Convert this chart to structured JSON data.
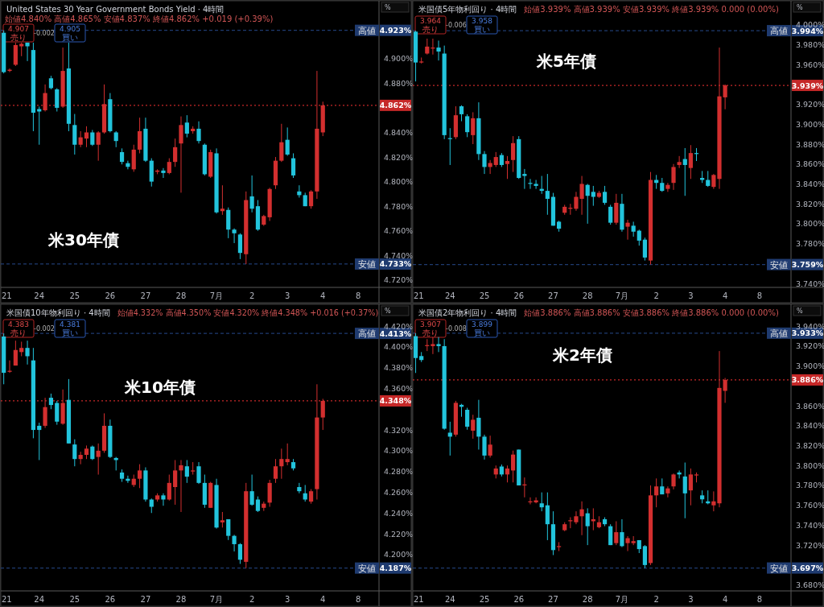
{
  "chart_data": [
    {
      "type": "candlestick",
      "title": "United States 30 Year Government Bonds Yield · 4時間",
      "subtitle": "始値4.840% 高値4.865% 安値4.837% 終値4.862% +0.019 (+0.39%)",
      "ylabel": "%",
      "annotations": [
        "米30年債",
        "4.907",
        "売り",
        "-0.002",
        "4.905",
        "買い"
      ],
      "categories": [
        "21",
        null,
        null,
        null,
        null,
        null,
        "24",
        null,
        null,
        null,
        null,
        null,
        "25",
        null,
        null,
        null,
        null,
        null,
        "26",
        null,
        null,
        null,
        null,
        null,
        "27",
        null,
        null,
        null,
        null,
        null,
        "28",
        null,
        null,
        null,
        null,
        null,
        "7月",
        null,
        null,
        null,
        null,
        null,
        "2",
        null,
        null,
        null,
        null,
        null,
        "3",
        null,
        null,
        null,
        null,
        null,
        "4",
        null,
        null,
        null,
        null,
        null,
        "8",
        null,
        null,
        null
      ],
      "ohlc": [
        [
          4.921,
          4.923,
          4.888,
          4.889
        ],
        [
          4.89,
          4.892,
          4.889,
          4.891
        ],
        [
          4.895,
          4.913,
          4.894,
          4.911
        ],
        [
          4.91,
          4.913,
          4.902,
          4.912
        ],
        [
          4.913,
          4.913,
          4.898,
          4.91
        ],
        [
          4.907,
          4.913,
          4.841,
          4.856
        ],
        [
          4.859,
          4.861,
          4.83,
          4.857
        ],
        [
          4.858,
          4.879,
          4.857,
          4.872
        ],
        [
          4.884,
          4.886,
          4.875,
          4.876
        ],
        [
          4.875,
          4.876,
          4.857,
          4.86
        ],
        [
          4.861,
          4.909,
          4.86,
          4.89
        ],
        [
          4.892,
          4.913,
          4.841,
          4.847
        ],
        [
          4.846,
          4.855,
          4.822,
          4.83
        ],
        [
          4.83,
          4.841,
          4.828,
          4.836
        ],
        [
          4.835,
          4.845,
          4.828,
          4.84
        ],
        [
          4.84,
          4.842,
          4.829,
          4.83
        ],
        [
          4.83,
          4.841,
          4.817,
          4.84
        ],
        [
          4.84,
          4.879,
          4.839,
          4.863
        ],
        [
          4.867,
          4.872,
          4.84,
          4.841
        ],
        [
          4.84,
          4.841,
          4.828,
          4.833
        ],
        [
          4.824,
          4.827,
          4.814,
          4.816
        ],
        [
          4.815,
          4.817,
          4.81,
          4.812
        ],
        [
          4.81,
          4.83,
          4.808,
          4.826
        ],
        [
          4.826,
          4.852,
          4.823,
          4.841
        ],
        [
          4.843,
          4.852,
          4.816,
          4.817
        ],
        [
          4.817,
          4.819,
          4.796,
          4.8
        ],
        [
          4.808,
          4.81,
          4.806,
          4.809
        ],
        [
          4.809,
          4.811,
          4.803,
          4.807
        ],
        [
          4.807,
          4.819,
          4.806,
          4.816
        ],
        [
          4.816,
          4.835,
          4.812,
          4.828
        ],
        [
          4.831,
          4.853,
          4.791,
          4.846
        ],
        [
          4.848,
          4.854,
          4.836,
          4.839
        ],
        [
          4.841,
          4.845,
          4.839,
          4.843
        ],
        [
          4.843,
          4.849,
          4.831,
          4.833
        ],
        [
          4.83,
          4.831,
          4.805,
          4.806
        ],
        [
          4.804,
          4.826,
          4.803,
          4.824
        ],
        [
          4.823,
          4.827,
          4.774,
          4.775
        ],
        [
          4.776,
          4.797,
          4.773,
          4.778
        ],
        [
          4.777,
          4.779,
          4.754,
          4.761
        ],
        [
          4.761,
          4.762,
          4.75,
          4.758
        ],
        [
          4.757,
          4.758,
          4.737,
          4.742
        ],
        [
          4.741,
          4.792,
          4.733,
          4.785
        ],
        [
          4.788,
          4.805,
          4.775,
          4.778
        ],
        [
          4.78,
          4.785,
          4.76,
          4.761
        ],
        [
          4.765,
          4.773,
          4.764,
          4.772
        ],
        [
          4.771,
          4.795,
          4.768,
          4.794
        ],
        [
          4.797,
          4.82,
          4.794,
          4.817
        ],
        [
          4.817,
          4.847,
          4.816,
          4.832
        ],
        [
          4.834,
          4.844,
          4.821,
          4.822
        ],
        [
          4.819,
          4.823,
          4.803,
          4.805
        ],
        [
          4.792,
          4.797,
          4.787,
          4.789
        ],
        [
          4.789,
          4.791,
          4.78,
          4.78
        ],
        [
          4.78,
          4.793,
          4.778,
          4.792
        ],
        [
          4.792,
          4.89,
          4.786,
          4.843
        ],
        [
          4.84,
          4.865,
          4.837,
          4.862
        ],
        null,
        null,
        null,
        null,
        null,
        null,
        null,
        null,
        null
      ],
      "colors": [
        "#22c4dc",
        "#d32f2f",
        "#d32f2f",
        "#d32f2f",
        "#22c4dc",
        "#22c4dc",
        "#22c4dc",
        "#d32f2f",
        "#22c4dc",
        "#22c4dc",
        "#d32f2f",
        "#22c4dc",
        "#22c4dc",
        "#d32f2f",
        "#d32f2f",
        "#22c4dc",
        "#d32f2f",
        "#d32f2f",
        "#22c4dc",
        "#22c4dc",
        "#22c4dc",
        "#22c4dc",
        "#d32f2f",
        "#d32f2f",
        "#22c4dc",
        "#22c4dc",
        "#d32f2f",
        "#22c4dc",
        "#d32f2f",
        "#d32f2f",
        "#d32f2f",
        "#22c4dc",
        "#d32f2f",
        "#22c4dc",
        "#22c4dc",
        "#d32f2f",
        "#22c4dc",
        "#d32f2f",
        "#22c4dc",
        "#22c4dc",
        "#22c4dc",
        "#d32f2f",
        "#22c4dc",
        "#22c4dc",
        "#d32f2f",
        "#d32f2f",
        "#d32f2f",
        "#d32f2f",
        "#22c4dc",
        "#22c4dc",
        "#22c4dc",
        "#22c4dc",
        "#d32f2f",
        "#d32f2f",
        "#d32f2f",
        null,
        null,
        null,
        null,
        null,
        null,
        null,
        null,
        null
      ],
      "ylim": [
        4.714,
        4.947
      ],
      "yticks": [
        {
          "value": 4.72,
          "label": "4.720%"
        },
        {
          "value": 4.74,
          "label": "4.740%"
        },
        {
          "value": 4.76,
          "label": "4.760%"
        },
        {
          "value": 4.78,
          "label": "4.780%"
        },
        {
          "value": 4.8,
          "label": "4.800%"
        },
        {
          "value": 4.82,
          "label": "4.820%"
        },
        {
          "value": 4.84,
          "label": "4.840%"
        },
        {
          "value": 4.88,
          "label": "4.880%"
        },
        {
          "value": 4.9,
          "label": "4.900%"
        }
      ],
      "ref_lines": [
        {
          "axis": "y",
          "value": 4.923,
          "label": "高値 4.923%",
          "color": "#1f3b70",
          "line_style": "dashed"
        },
        {
          "axis": "y",
          "value": 4.862,
          "label": "4.862%",
          "color": "#c62828",
          "line_style": "dotted"
        },
        {
          "axis": "y",
          "value": 4.733,
          "label": "安値 4.733%",
          "color": "#1f3b70",
          "line_style": "dashed"
        }
      ]
    },
    {
      "type": "candlestick",
      "title": "米国債5年物利回り · 4時間",
      "subtitle": "始値3.939% 高値3.939% 安値3.939% 終値3.939% 0.000 (0.00%)",
      "ylabel": "%",
      "annotations": [
        "米5年債",
        "3.964",
        "売り",
        "-0.006",
        "3.958",
        "買い"
      ],
      "categories": [
        "21",
        null,
        null,
        null,
        null,
        null,
        "24",
        null,
        null,
        null,
        null,
        null,
        "25",
        null,
        null,
        null,
        null,
        null,
        "26",
        null,
        null,
        null,
        null,
        null,
        "27",
        null,
        null,
        null,
        null,
        null,
        "28",
        null,
        null,
        null,
        null,
        null,
        "7月",
        null,
        null,
        null,
        null,
        null,
        "2",
        null,
        null,
        null,
        null,
        null,
        "3",
        null,
        null,
        null,
        null,
        null,
        "4",
        null,
        null,
        null,
        null,
        null,
        "8",
        null,
        null,
        null,
        null,
        null
      ],
      "ohlc": [
        [
          3.993,
          3.994,
          3.943,
          3.962
        ],
        [
          3.962,
          3.967,
          3.961,
          3.963
        ],
        [
          3.971,
          3.986,
          3.97,
          3.978
        ],
        [
          3.976,
          3.986,
          3.97,
          3.977
        ],
        [
          3.977,
          3.984,
          3.964,
          3.973
        ],
        [
          3.971,
          3.979,
          3.885,
          3.889
        ],
        [
          3.886,
          3.896,
          3.859,
          3.885
        ],
        [
          3.887,
          3.918,
          3.885,
          3.909
        ],
        [
          3.918,
          3.919,
          3.903,
          3.91
        ],
        [
          3.908,
          3.91,
          3.887,
          3.892
        ],
        [
          3.889,
          3.912,
          3.88,
          3.906
        ],
        [
          3.906,
          3.922,
          3.864,
          3.87
        ],
        [
          3.87,
          3.873,
          3.85,
          3.857
        ],
        [
          3.857,
          3.864,
          3.85,
          3.861
        ],
        [
          3.859,
          3.872,
          3.857,
          3.867
        ],
        [
          3.869,
          3.871,
          3.857,
          3.859
        ],
        [
          3.86,
          3.868,
          3.845,
          3.863
        ],
        [
          3.864,
          3.888,
          3.852,
          3.881
        ],
        [
          3.885,
          3.888,
          3.845,
          3.846
        ],
        [
          3.85,
          3.855,
          3.835,
          3.848
        ],
        [
          3.841,
          3.845,
          3.835,
          3.84
        ],
        [
          3.84,
          3.844,
          3.835,
          3.838
        ],
        [
          3.835,
          3.848,
          3.83,
          3.833
        ],
        [
          3.833,
          3.85,
          3.809,
          3.825
        ],
        [
          3.827,
          3.831,
          3.798,
          3.798
        ],
        [
          3.802,
          3.803,
          3.792,
          3.795
        ],
        [
          3.811,
          3.819,
          3.809,
          3.817
        ],
        [
          3.815,
          3.82,
          3.809,
          3.816
        ],
        [
          3.815,
          3.832,
          3.813,
          3.827
        ],
        [
          3.825,
          3.848,
          3.809,
          3.84
        ],
        [
          3.839,
          3.84,
          3.8,
          3.828
        ],
        [
          3.832,
          3.838,
          3.818,
          3.827
        ],
        [
          3.827,
          3.833,
          3.826,
          3.831
        ],
        [
          3.832,
          3.838,
          3.819,
          3.821
        ],
        [
          3.817,
          3.819,
          3.799,
          3.801
        ],
        [
          3.801,
          3.83,
          3.799,
          3.821
        ],
        [
          3.82,
          3.83,
          3.792,
          3.794
        ],
        [
          3.797,
          3.804,
          3.784,
          3.801
        ],
        [
          3.798,
          3.802,
          3.787,
          3.792
        ],
        [
          3.793,
          3.794,
          3.778,
          3.783
        ],
        [
          3.784,
          3.786,
          3.763,
          3.766
        ],
        [
          3.763,
          3.852,
          3.759,
          3.844
        ],
        [
          3.844,
          3.849,
          3.835,
          3.841
        ],
        [
          3.841,
          3.846,
          3.832,
          3.833
        ],
        [
          3.835,
          3.841,
          3.832,
          3.839
        ],
        [
          3.841,
          3.86,
          3.834,
          3.857
        ],
        [
          3.859,
          3.868,
          3.856,
          3.862
        ],
        [
          3.865,
          3.876,
          3.828,
          3.859
        ],
        [
          3.856,
          3.879,
          3.845,
          3.871
        ],
        [
          3.871,
          3.876,
          3.863,
          3.87
        ],
        [
          3.846,
          3.853,
          3.841,
          3.844
        ],
        [
          3.844,
          3.853,
          3.837,
          3.838
        ],
        [
          3.837,
          3.85,
          3.835,
          3.849
        ],
        [
          3.845,
          3.977,
          3.835,
          3.928
        ],
        [
          3.927,
          3.94,
          3.915,
          3.939
        ],
        null,
        null,
        null,
        null,
        null,
        null,
        null,
        null,
        null,
        null,
        null
      ],
      "colors": [
        "#22c4dc",
        "#d32f2f",
        "#d32f2f",
        "#d32f2f",
        "#22c4dc",
        "#22c4dc",
        "#22c4dc",
        "#d32f2f",
        "#22c4dc",
        "#22c4dc",
        "#d32f2f",
        "#22c4dc",
        "#22c4dc",
        "#d32f2f",
        "#d32f2f",
        "#22c4dc",
        "#d32f2f",
        "#d32f2f",
        "#22c4dc",
        "#22c4dc",
        "#22c4dc",
        "#22c4dc",
        "#22c4dc",
        "#22c4dc",
        "#22c4dc",
        "#22c4dc",
        "#d32f2f",
        "#d32f2f",
        "#d32f2f",
        "#d32f2f",
        "#22c4dc",
        "#22c4dc",
        "#d32f2f",
        "#22c4dc",
        "#22c4dc",
        "#d32f2f",
        "#22c4dc",
        "#d32f2f",
        "#22c4dc",
        "#22c4dc",
        "#22c4dc",
        "#d32f2f",
        "#22c4dc",
        "#22c4dc",
        "#d32f2f",
        "#d32f2f",
        "#d32f2f",
        "#22c4dc",
        "#d32f2f",
        "#22c4dc",
        "#22c4dc",
        "#22c4dc",
        "#d32f2f",
        "#d32f2f",
        "#d32f2f",
        null,
        null,
        null,
        null,
        null,
        null,
        null,
        null,
        null,
        null,
        null
      ],
      "ylim": [
        3.736,
        4.024
      ],
      "yticks": [
        {
          "value": 3.74,
          "label": "3.740%"
        },
        {
          "value": 3.78,
          "label": "3.780%"
        },
        {
          "value": 3.8,
          "label": "3.800%"
        },
        {
          "value": 3.82,
          "label": "3.820%"
        },
        {
          "value": 3.84,
          "label": "3.840%"
        },
        {
          "value": 3.86,
          "label": "3.860%"
        },
        {
          "value": 3.88,
          "label": "3.880%"
        },
        {
          "value": 3.9,
          "label": "3.900%"
        },
        {
          "value": 3.92,
          "label": "3.920%"
        },
        {
          "value": 3.96,
          "label": "3.960%"
        },
        {
          "value": 3.98,
          "label": "3.980%"
        },
        {
          "value": 4.0,
          "label": "4.000%"
        }
      ],
      "ref_lines": [
        {
          "axis": "y",
          "value": 3.994,
          "label": "高値 3.994%",
          "color": "#1f3b70",
          "line_style": "dashed"
        },
        {
          "axis": "y",
          "value": 3.939,
          "label": "3.939%",
          "color": "#c62828",
          "line_style": "dotted"
        },
        {
          "axis": "y",
          "value": 3.759,
          "label": "安値 3.759%",
          "color": "#1f3b70",
          "line_style": "dashed"
        }
      ]
    },
    {
      "type": "candlestick",
      "title": "米国債10年物利回り · 4時間",
      "subtitle": "始値4.332% 高値4.350% 安値4.320% 終値4.348% +0.016 (+0.37%)",
      "ylabel": "%",
      "annotations": [
        "米10年債",
        "4.383",
        "売り",
        "-0.002",
        "4.381",
        "買い"
      ],
      "categories": [
        "21",
        null,
        null,
        null,
        null,
        null,
        "24",
        null,
        null,
        null,
        null,
        null,
        "25",
        null,
        null,
        null,
        null,
        null,
        "26",
        null,
        null,
        null,
        null,
        null,
        "27",
        null,
        null,
        null,
        null,
        null,
        "28",
        null,
        null,
        null,
        null,
        null,
        "7月",
        null,
        null,
        null,
        null,
        null,
        "2",
        null,
        null,
        null,
        null,
        null,
        "3",
        null,
        null,
        null,
        null,
        null,
        "4",
        null,
        null,
        null,
        null,
        null,
        "8",
        null,
        null,
        null
      ],
      "ohlc": [
        [
          4.41,
          4.413,
          4.364,
          4.375
        ],
        [
          4.376,
          4.387,
          4.375,
          4.377
        ],
        [
          4.382,
          4.406,
          4.382,
          4.397
        ],
        [
          4.395,
          4.405,
          4.391,
          4.399
        ],
        [
          4.399,
          4.406,
          4.383,
          4.391
        ],
        [
          4.387,
          4.399,
          4.312,
          4.32
        ],
        [
          4.324,
          4.327,
          4.291,
          4.32
        ],
        [
          4.324,
          4.351,
          4.322,
          4.342
        ],
        [
          4.351,
          4.355,
          4.34,
          4.344
        ],
        [
          4.346,
          4.348,
          4.325,
          4.328
        ],
        [
          4.326,
          4.359,
          4.325,
          4.346
        ],
        [
          4.349,
          4.369,
          4.307,
          4.307
        ],
        [
          4.306,
          4.311,
          4.285,
          4.292
        ],
        [
          4.292,
          4.299,
          4.287,
          4.296
        ],
        [
          4.296,
          4.305,
          4.292,
          4.302
        ],
        [
          4.304,
          4.305,
          4.291,
          4.292
        ],
        [
          4.294,
          4.307,
          4.277,
          4.3
        ],
        [
          4.3,
          4.336,
          4.298,
          4.324
        ],
        [
          4.324,
          4.33,
          4.293,
          4.294
        ],
        [
          4.293,
          4.294,
          4.281,
          4.291
        ],
        [
          4.279,
          4.282,
          4.27,
          4.273
        ],
        [
          4.273,
          4.276,
          4.269,
          4.271
        ],
        [
          4.267,
          4.277,
          4.265,
          4.273
        ],
        [
          4.273,
          4.287,
          4.264,
          4.281
        ],
        [
          4.281,
          4.284,
          4.251,
          4.253
        ],
        [
          4.253,
          4.254,
          4.24,
          4.246
        ],
        [
          4.253,
          4.259,
          4.251,
          4.257
        ],
        [
          4.257,
          4.259,
          4.247,
          4.253
        ],
        [
          4.253,
          4.277,
          4.252,
          4.269
        ],
        [
          4.265,
          4.291,
          4.248,
          4.281
        ],
        [
          4.281,
          4.291,
          4.241,
          4.286
        ],
        [
          4.285,
          4.291,
          4.269,
          4.275
        ],
        [
          4.28,
          4.289,
          4.277,
          4.281
        ],
        [
          4.285,
          4.289,
          4.268,
          4.269
        ],
        [
          4.269,
          4.277,
          4.245,
          4.248
        ],
        [
          4.245,
          4.27,
          4.245,
          4.269
        ],
        [
          4.267,
          4.273,
          4.225,
          4.226
        ],
        [
          4.231,
          4.241,
          4.226,
          4.233
        ],
        [
          4.234,
          4.234,
          4.214,
          4.218
        ],
        [
          4.218,
          4.219,
          4.203,
          4.21
        ],
        [
          4.21,
          4.211,
          4.191,
          4.195
        ],
        [
          4.193,
          4.269,
          4.187,
          4.261
        ],
        [
          4.261,
          4.277,
          4.247,
          4.248
        ],
        [
          4.253,
          4.256,
          4.241,
          4.242
        ],
        [
          4.245,
          4.251,
          4.242,
          4.249
        ],
        [
          4.25,
          4.272,
          4.246,
          4.269
        ],
        [
          4.273,
          4.292,
          4.269,
          4.285
        ],
        [
          4.285,
          4.302,
          4.273,
          4.292
        ],
        [
          4.289,
          4.307,
          4.286,
          4.292
        ],
        [
          4.289,
          4.292,
          4.281,
          4.283
        ],
        [
          4.265,
          4.269,
          4.259,
          4.261
        ],
        [
          4.259,
          4.267,
          4.251,
          4.253
        ],
        [
          4.251,
          4.263,
          4.249,
          4.261
        ],
        [
          4.263,
          4.364,
          4.253,
          4.332
        ],
        [
          4.332,
          4.35,
          4.32,
          4.348
        ],
        null,
        null,
        null,
        null,
        null,
        null,
        null,
        null,
        null
      ],
      "colors": [
        "#22c4dc",
        "#d32f2f",
        "#d32f2f",
        "#d32f2f",
        "#22c4dc",
        "#22c4dc",
        "#22c4dc",
        "#d32f2f",
        "#22c4dc",
        "#22c4dc",
        "#d32f2f",
        "#22c4dc",
        "#22c4dc",
        "#d32f2f",
        "#d32f2f",
        "#22c4dc",
        "#d32f2f",
        "#d32f2f",
        "#22c4dc",
        "#22c4dc",
        "#22c4dc",
        "#22c4dc",
        "#d32f2f",
        "#d32f2f",
        "#22c4dc",
        "#22c4dc",
        "#d32f2f",
        "#22c4dc",
        "#d32f2f",
        "#d32f2f",
        "#d32f2f",
        "#22c4dc",
        "#d32f2f",
        "#22c4dc",
        "#22c4dc",
        "#d32f2f",
        "#22c4dc",
        "#d32f2f",
        "#22c4dc",
        "#22c4dc",
        "#22c4dc",
        "#d32f2f",
        "#22c4dc",
        "#22c4dc",
        "#d32f2f",
        "#d32f2f",
        "#d32f2f",
        "#d32f2f",
        "#d32f2f",
        "#22c4dc",
        "#22c4dc",
        "#22c4dc",
        "#d32f2f",
        "#d32f2f",
        "#d32f2f",
        null,
        null,
        null,
        null,
        null,
        null,
        null,
        null,
        null
      ],
      "ylim": [
        4.165,
        4.441
      ],
      "yticks": [
        {
          "value": 4.2,
          "label": "4.200%"
        },
        {
          "value": 4.22,
          "label": "4.220%"
        },
        {
          "value": 4.24,
          "label": "4.240%"
        },
        {
          "value": 4.26,
          "label": "4.260%"
        },
        {
          "value": 4.28,
          "label": "4.280%"
        },
        {
          "value": 4.3,
          "label": "4.300%"
        },
        {
          "value": 4.32,
          "label": "4.320%"
        },
        {
          "value": 4.36,
          "label": "4.360%"
        },
        {
          "value": 4.38,
          "label": "4.380%"
        },
        {
          "value": 4.4,
          "label": "4.400%"
        },
        {
          "value": 4.42,
          "label": "4.420%"
        }
      ],
      "ref_lines": [
        {
          "axis": "y",
          "value": 4.413,
          "label": "高値 4.413%",
          "color": "#1f3b70",
          "line_style": "dashed"
        },
        {
          "axis": "y",
          "value": 4.348,
          "label": "4.348%",
          "color": "#c62828",
          "line_style": "dotted"
        },
        {
          "axis": "y",
          "value": 4.187,
          "label": "安値 4.187%",
          "color": "#1f3b70",
          "line_style": "dashed"
        }
      ]
    },
    {
      "type": "candlestick",
      "title": "米国債2年物利回り · 4時間",
      "subtitle": "始値3.886% 高値3.886% 安値3.886% 終値3.886% 0.000 (0.00%)",
      "ylabel": "%",
      "annotations": [
        "米2年債",
        "3.907",
        "売り",
        "-0.008",
        "3.899",
        "買い"
      ],
      "categories": [
        "21",
        null,
        null,
        null,
        null,
        null,
        "24",
        null,
        null,
        null,
        null,
        null,
        "25",
        null,
        null,
        null,
        null,
        null,
        "26",
        null,
        null,
        null,
        null,
        null,
        "27",
        null,
        null,
        null,
        null,
        null,
        "28",
        null,
        null,
        null,
        null,
        null,
        "7月",
        null,
        null,
        null,
        null,
        null,
        "2",
        null,
        null,
        null,
        null,
        null,
        "3",
        null,
        null,
        null,
        null,
        null,
        "4",
        null,
        null,
        null,
        null,
        null,
        "8",
        null,
        null,
        null,
        null,
        null
      ],
      "ohlc": [
        [
          3.93,
          3.933,
          3.893,
          3.908
        ],
        [
          3.91,
          3.914,
          3.904,
          3.906
        ],
        [
          3.92,
          3.927,
          3.915,
          3.921
        ],
        [
          3.92,
          3.929,
          3.912,
          3.922
        ],
        [
          3.922,
          3.929,
          3.914,
          3.92
        ],
        [
          3.92,
          3.927,
          3.836,
          3.837
        ],
        [
          3.833,
          3.844,
          3.81,
          3.829
        ],
        [
          3.831,
          3.865,
          3.829,
          3.863
        ],
        [
          3.861,
          3.862,
          3.849,
          3.859
        ],
        [
          3.856,
          3.858,
          3.836,
          3.839
        ],
        [
          3.835,
          3.851,
          3.827,
          3.846
        ],
        [
          3.848,
          3.866,
          3.816,
          3.829
        ],
        [
          3.829,
          3.831,
          3.806,
          3.81
        ],
        [
          3.81,
          3.83,
          3.808,
          3.821
        ],
        [
          3.791,
          3.8,
          3.787,
          3.797
        ],
        [
          3.799,
          3.801,
          3.789,
          3.791
        ],
        [
          3.791,
          3.8,
          3.783,
          3.797
        ],
        [
          3.795,
          3.815,
          3.783,
          3.811
        ],
        [
          3.816,
          3.816,
          3.78,
          3.78
        ],
        [
          3.78,
          3.788,
          3.768,
          3.781
        ],
        [
          3.763,
          3.768,
          3.761,
          3.764
        ],
        [
          3.763,
          3.768,
          3.762,
          3.765
        ],
        [
          3.762,
          3.773,
          3.754,
          3.758
        ],
        [
          3.76,
          3.773,
          3.725,
          3.741
        ],
        [
          3.741,
          3.754,
          3.71,
          3.715
        ],
        [
          3.718,
          3.723,
          3.714,
          3.719
        ],
        [
          3.735,
          3.743,
          3.734,
          3.741
        ],
        [
          3.744,
          3.748,
          3.737,
          3.745
        ],
        [
          3.743,
          3.754,
          3.741,
          3.749
        ],
        [
          3.749,
          3.764,
          3.73,
          3.756
        ],
        [
          3.752,
          3.757,
          3.72,
          3.739
        ],
        [
          3.744,
          3.757,
          3.735,
          3.746
        ],
        [
          3.738,
          3.749,
          3.737,
          3.743
        ],
        [
          3.746,
          3.748,
          3.739,
          3.741
        ],
        [
          3.739,
          3.741,
          3.72,
          3.72
        ],
        [
          3.722,
          3.744,
          3.72,
          3.733
        ],
        [
          3.733,
          3.746,
          3.718,
          3.719
        ],
        [
          3.722,
          3.729,
          3.714,
          3.727
        ],
        [
          3.722,
          3.729,
          3.72,
          3.724
        ],
        [
          3.725,
          3.725,
          3.712,
          3.716
        ],
        [
          3.719,
          3.72,
          3.697,
          3.7
        ],
        [
          3.702,
          3.78,
          3.7,
          3.77
        ],
        [
          3.77,
          3.787,
          3.758,
          3.779
        ],
        [
          3.779,
          3.787,
          3.771,
          3.771
        ],
        [
          3.772,
          3.779,
          3.768,
          3.777
        ],
        [
          3.779,
          3.792,
          3.776,
          3.791
        ],
        [
          3.793,
          3.795,
          3.787,
          3.791
        ],
        [
          3.789,
          3.803,
          3.747,
          3.772
        ],
        [
          3.775,
          3.797,
          3.76,
          3.791
        ],
        [
          3.79,
          3.793,
          3.783,
          3.791
        ],
        [
          3.77,
          3.775,
          3.762,
          3.766
        ],
        [
          3.764,
          3.775,
          3.761,
          3.762
        ],
        [
          3.76,
          3.774,
          3.754,
          3.764
        ],
        [
          3.762,
          3.915,
          3.758,
          3.878
        ],
        [
          3.875,
          3.888,
          3.863,
          3.886
        ],
        null,
        null,
        null,
        null,
        null,
        null,
        null,
        null,
        null,
        null,
        null
      ],
      "colors": [
        "#22c4dc",
        "#22c4dc",
        "#d32f2f",
        "#d32f2f",
        "#22c4dc",
        "#22c4dc",
        "#22c4dc",
        "#d32f2f",
        "#22c4dc",
        "#22c4dc",
        "#d32f2f",
        "#22c4dc",
        "#22c4dc",
        "#d32f2f",
        "#d32f2f",
        "#22c4dc",
        "#d32f2f",
        "#d32f2f",
        "#22c4dc",
        "#d32f2f",
        "#d32f2f",
        "#d32f2f",
        "#22c4dc",
        "#22c4dc",
        "#22c4dc",
        "#d32f2f",
        "#d32f2f",
        "#d32f2f",
        "#d32f2f",
        "#d32f2f",
        "#22c4dc",
        "#d32f2f",
        "#d32f2f",
        "#22c4dc",
        "#22c4dc",
        "#d32f2f",
        "#22c4dc",
        "#d32f2f",
        "#d32f2f",
        "#22c4dc",
        "#22c4dc",
        "#d32f2f",
        "#d32f2f",
        "#22c4dc",
        "#d32f2f",
        "#d32f2f",
        "#22c4dc",
        "#22c4dc",
        "#d32f2f",
        "#d32f2f",
        "#22c4dc",
        "#22c4dc",
        "#d32f2f",
        "#d32f2f",
        "#d32f2f",
        null,
        null,
        null,
        null,
        null,
        null,
        null,
        null,
        null,
        null,
        null
      ],
      "ylim": [
        3.674,
        3.962
      ],
      "yticks": [
        {
          "value": 3.68,
          "label": "3.680%"
        },
        {
          "value": 3.72,
          "label": "3.720%"
        },
        {
          "value": 3.74,
          "label": "3.740%"
        },
        {
          "value": 3.76,
          "label": "3.760%"
        },
        {
          "value": 3.78,
          "label": "3.780%"
        },
        {
          "value": 3.8,
          "label": "3.800%"
        },
        {
          "value": 3.82,
          "label": "3.820%"
        },
        {
          "value": 3.84,
          "label": "3.840%"
        },
        {
          "value": 3.86,
          "label": "3.860%"
        },
        {
          "value": 3.9,
          "label": "3.900%"
        },
        {
          "value": 3.92,
          "label": "3.920%"
        },
        {
          "value": 3.94,
          "label": "3.940%"
        }
      ],
      "ref_lines": [
        {
          "axis": "y",
          "value": 3.933,
          "label": "高値 3.933%",
          "color": "#1f3b70",
          "line_style": "dashed"
        },
        {
          "axis": "y",
          "value": 3.886,
          "label": "3.886%",
          "color": "#c62828",
          "line_style": "dotted"
        },
        {
          "axis": "y",
          "value": 3.697,
          "label": "安値 3.697%",
          "color": "#1f3b70",
          "line_style": "dashed"
        }
      ]
    }
  ]
}
